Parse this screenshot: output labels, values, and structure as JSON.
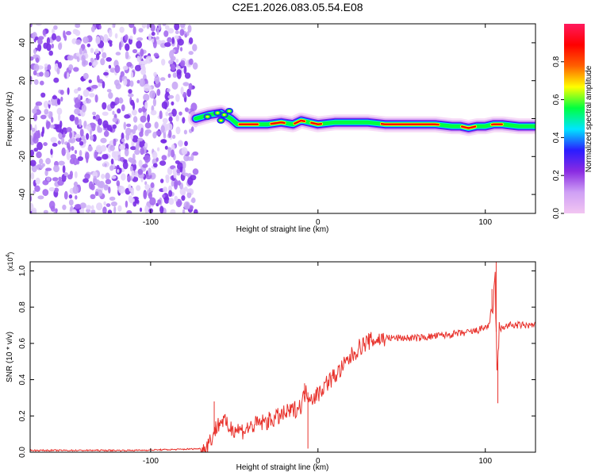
{
  "title": "C2E1.2026.083.05.54.E08",
  "colors": {
    "snr_line": "#e8322c",
    "background": "#ffffff",
    "speckle": [
      "#7a2ee6",
      "#a56af0",
      "#c9a8f5",
      "#e4d4fb"
    ],
    "colormap": [
      "#f2c6f2",
      "#cfa0f5",
      "#8a2be2",
      "#2a1cff",
      "#00e5ff",
      "#00ff40",
      "#ffff00",
      "#ff6000",
      "#ff0000",
      "#ff1a5e"
    ]
  },
  "chart_data": [
    {
      "type": "heatmap",
      "name": "spectrogram",
      "xlabel": "Height of straight line (km)",
      "ylabel": "Frequency (Hz)",
      "xlim": [
        -172,
        130
      ],
      "ylim": [
        -50,
        50
      ],
      "xticks": [
        -100,
        0,
        100
      ],
      "xtick_labels": [
        "-100",
        "0",
        "100"
      ],
      "yticks": [
        -40,
        -20,
        0,
        20,
        40
      ],
      "ytick_labels": [
        "-40",
        "-20",
        "0",
        "20",
        "40"
      ],
      "noise_region_x": [
        -172,
        -73
      ],
      "signal_start_x": -73,
      "ridge": {
        "x": [
          -73,
          -65,
          -58,
          -52,
          -48,
          -40,
          -30,
          -22,
          -15,
          -10,
          -5,
          0,
          10,
          20,
          30,
          40,
          50,
          60,
          70,
          80,
          85,
          90,
          95,
          100,
          105,
          110,
          120,
          130
        ],
        "freq": [
          0,
          2,
          3,
          0,
          -3,
          -3,
          -3,
          -2,
          -3,
          -1,
          -2,
          -3,
          -2,
          -2,
          -2,
          -3,
          -3,
          -3,
          -3,
          -4,
          -4,
          -5,
          -4,
          -4,
          -3,
          -3,
          -4,
          -4
        ]
      },
      "colorbar": {
        "label": "Normalized spectral amplitude",
        "range": [
          0,
          1
        ],
        "ticks": [
          0.0,
          0.2,
          0.4,
          0.6,
          0.8
        ],
        "tick_labels": [
          "0.0",
          "0.2",
          "0.4",
          "0.6",
          "0.8"
        ]
      }
    },
    {
      "type": "line",
      "name": "snr",
      "xlabel": "Height of straight line (km)",
      "ylabel": "SNR (10 * v/v)",
      "y_multiplier": "(x10",
      "y_multiplier_exp": "4",
      "y_multiplier_close": ")",
      "xlim": [
        -172,
        130
      ],
      "ylim": [
        0,
        1.05
      ],
      "xticks": [
        -100,
        0,
        100
      ],
      "xtick_labels": [
        "-100",
        "0",
        "100"
      ],
      "yticks": [
        0.0,
        0.2,
        0.4,
        0.6,
        0.8,
        1.0
      ],
      "ytick_labels": [
        "0.0",
        "0.2",
        "0.4",
        "0.6",
        "0.8",
        "1.0"
      ],
      "series": [
        {
          "name": "SNR",
          "x": [
            -172,
            -140,
            -110,
            -85,
            -68,
            -64,
            -60,
            -57,
            -54,
            -50,
            -45,
            -40,
            -35,
            -30,
            -25,
            -20,
            -15,
            -10,
            -8,
            -6,
            -4,
            0,
            5,
            10,
            15,
            20,
            25,
            30,
            35,
            40,
            45,
            50,
            60,
            70,
            80,
            90,
            95,
            100,
            103,
            105,
            106,
            107,
            108,
            110,
            115,
            120,
            125,
            130
          ],
          "y": [
            0.01,
            0.01,
            0.01,
            0.015,
            0.02,
            0.07,
            0.15,
            0.18,
            0.14,
            0.13,
            0.12,
            0.14,
            0.16,
            0.17,
            0.19,
            0.21,
            0.23,
            0.26,
            0.32,
            0.33,
            0.3,
            0.32,
            0.38,
            0.42,
            0.47,
            0.53,
            0.58,
            0.61,
            0.62,
            0.63,
            0.63,
            0.63,
            0.63,
            0.64,
            0.65,
            0.66,
            0.67,
            0.69,
            0.7,
            0.85,
            0.95,
            0.38,
            0.64,
            0.69,
            0.7,
            0.7,
            0.7,
            0.7
          ]
        }
      ]
    }
  ]
}
